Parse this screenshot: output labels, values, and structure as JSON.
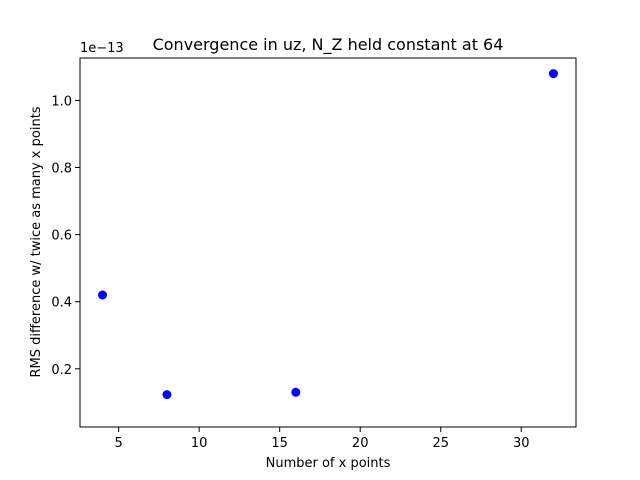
{
  "chart_data": {
    "type": "scatter",
    "title": "Convergence in uz, N_Z held constant at 64",
    "xlabel": "Number of x points",
    "ylabel": "RMS difference w/ twice as many x points",
    "y_offset_label": "1e−13",
    "x": [
      4,
      8,
      16,
      32
    ],
    "y": [
      0.42,
      0.123,
      0.13,
      1.08
    ],
    "y_scale_factor": 1e-13,
    "xlim": [
      2.6,
      33.4
    ],
    "ylim": [
      0.0265,
      1.1265
    ],
    "x_ticks": [
      5,
      10,
      15,
      20,
      25,
      30
    ],
    "x_tick_labels": [
      "5",
      "10",
      "15",
      "20",
      "25",
      "30"
    ],
    "y_ticks": [
      0.2,
      0.4,
      0.6,
      0.8,
      1.0
    ],
    "y_tick_labels": [
      "0.2",
      "0.4",
      "0.6",
      "0.8",
      "1.0"
    ],
    "marker_color": "#0000ff",
    "grid": false,
    "legend": "none"
  }
}
